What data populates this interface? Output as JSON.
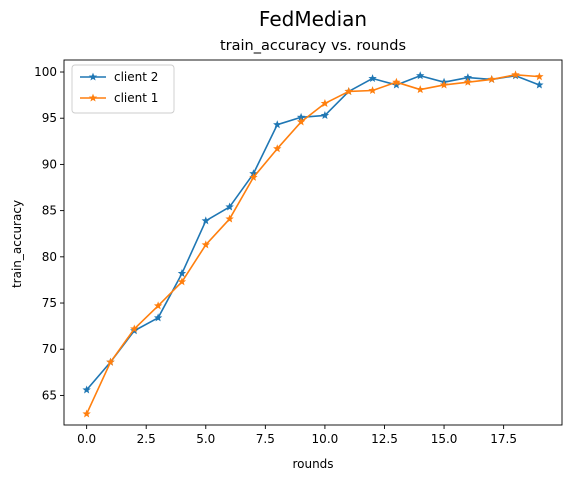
{
  "figure": {
    "suptitle": "FedMedian"
  },
  "chart_data": {
    "type": "line",
    "title": "train_accuracy vs. rounds",
    "xlabel": "rounds",
    "ylabel": "train_accuracy",
    "xlim": [
      -0.95,
      19.95
    ],
    "ylim": [
      61.8,
      101.3
    ],
    "xticks": [
      0,
      2.5,
      5,
      7.5,
      10,
      12.5,
      15,
      17.5
    ],
    "xtick_labels": [
      "0.0",
      "2.5",
      "5.0",
      "7.5",
      "10.0",
      "12.5",
      "15.0",
      "17.5"
    ],
    "yticks": [
      65,
      70,
      75,
      80,
      85,
      90,
      95,
      100
    ],
    "ytick_labels": [
      "65",
      "70",
      "75",
      "80",
      "85",
      "90",
      "95",
      "100"
    ],
    "grid": false,
    "legend_position": "top-left",
    "marker": "star",
    "x": [
      0,
      1,
      2,
      3,
      4,
      5,
      6,
      7,
      8,
      9,
      10,
      11,
      12,
      13,
      14,
      15,
      16,
      17,
      18,
      19
    ],
    "series": [
      {
        "name": "client 2",
        "color": "#1f77b4",
        "values": [
          65.6,
          68.6,
          72.0,
          73.4,
          78.2,
          83.9,
          85.4,
          89.0,
          94.3,
          95.1,
          95.3,
          97.9,
          99.3,
          98.6,
          99.6,
          98.9,
          99.4,
          99.2,
          99.6,
          98.6
        ]
      },
      {
        "name": "client 1",
        "color": "#ff7f0e",
        "values": [
          63.0,
          68.6,
          72.2,
          74.7,
          77.3,
          81.3,
          84.1,
          88.6,
          91.7,
          94.6,
          96.6,
          97.9,
          98.0,
          98.9,
          98.1,
          98.6,
          98.9,
          99.2,
          99.7,
          99.5
        ]
      }
    ]
  }
}
